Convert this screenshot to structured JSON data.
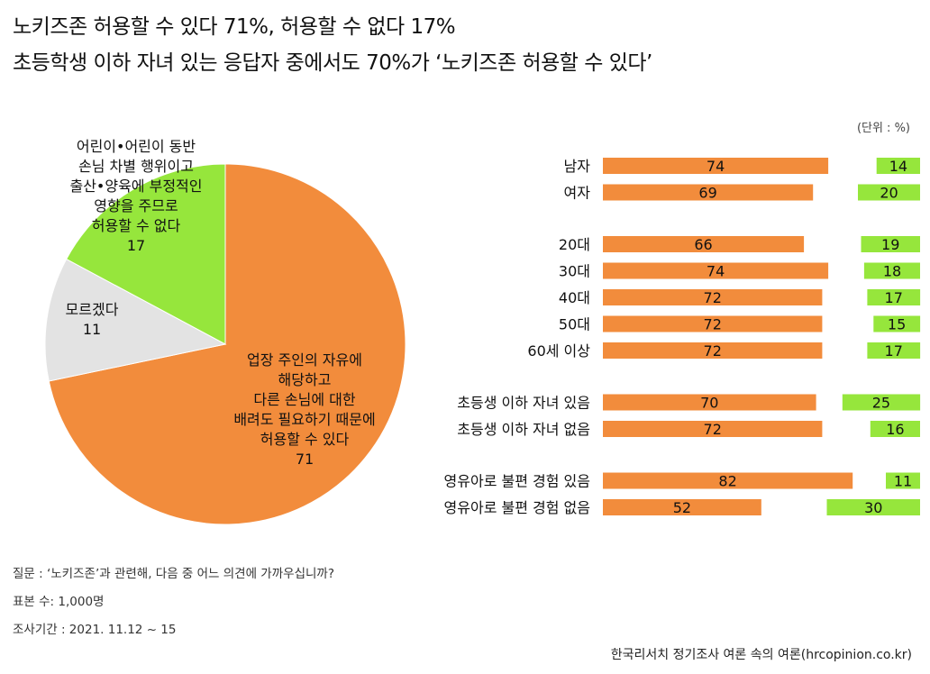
{
  "header": {
    "title_line1": "노키즈존 허용할 수 있다 71%, 허용할 수 없다 17%",
    "title_line2": "초등학생 이하 자녀 있는 응답자 중에서도 70%가 ‘노키즈존 허용할 수 있다’"
  },
  "footer": {
    "question": "질문 : ‘노키즈존’과 관련해, 다음 중 어느 의견에 가까우십니까?",
    "sample": "표본 수: 1,000명",
    "period": "조사기간 : 2021. 11.12 ~ 15",
    "source": "한국리서치 정기조사 여론 속의 여론(hrcopinion.co.kr)"
  },
  "colors": {
    "agree": "#f28c3c",
    "disagree": "#96e63c",
    "dontknow": "#e3e3e3"
  },
  "chart_data": [
    {
      "type": "pie",
      "slices": [
        {
          "key": "agree",
          "lines": [
            "업장 주인의 자유에",
            "해당하고",
            "다른 손님에 대한",
            "배려도 필요하기 때문에",
            "허용할 수 있다"
          ],
          "value": 71
        },
        {
          "key": "dontknow",
          "lines": [
            "모르겠다"
          ],
          "value": 11
        },
        {
          "key": "disagree",
          "lines": [
            "어린이•어린이 동반",
            "손님 차별 행위이고",
            "출산•양육에 부정적인",
            "영향을 주므로",
            "허용할 수 없다"
          ],
          "value": 17
        }
      ]
    },
    {
      "type": "bar",
      "unit_note": "(단위 : %)",
      "series_keys": [
        "agree",
        "disagree"
      ],
      "groups": [
        [
          {
            "label": "남자",
            "agree": 74,
            "disagree": 14
          },
          {
            "label": "여자",
            "agree": 69,
            "disagree": 20
          }
        ],
        [
          {
            "label": "20대",
            "agree": 66,
            "disagree": 19
          },
          {
            "label": "30대",
            "agree": 74,
            "disagree": 18
          },
          {
            "label": "40대",
            "agree": 72,
            "disagree": 17
          },
          {
            "label": "50대",
            "agree": 72,
            "disagree": 15
          },
          {
            "label": "60세 이상",
            "agree": 72,
            "disagree": 17
          }
        ],
        [
          {
            "label": "초등생 이하 자녀 있음",
            "agree": 70,
            "disagree": 25
          },
          {
            "label": "초등생 이하 자녀 없음",
            "agree": 72,
            "disagree": 16
          }
        ],
        [
          {
            "label": "영유아로 불편 경험 있음",
            "agree": 82,
            "disagree": 11
          },
          {
            "label": "영유아로 불편 경험 없음",
            "agree": 52,
            "disagree": 30
          }
        ]
      ]
    }
  ]
}
